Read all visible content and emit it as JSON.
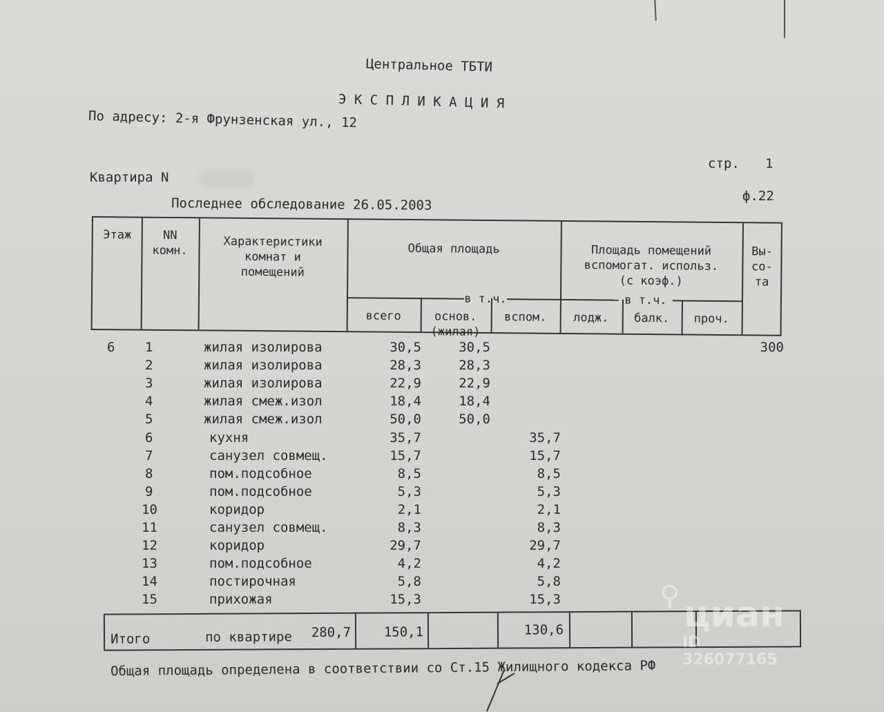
{
  "header": {
    "org": "Центральное ТБТИ",
    "title": "Э К С П Л И К А Ц И Я",
    "address": "По адресу: 2-я Фрунзенская ул., 12",
    "page_label": "стр.",
    "page_number": "1",
    "apartment_label": "Квартира N",
    "last_survey": "Последнее обследование 26.05.2003",
    "form": "ф.22"
  },
  "table_header": {
    "floor": "Этаж",
    "room_no": [
      "NN",
      "комн."
    ],
    "characteristics": [
      "Характеристики",
      "комнат и",
      "помещений"
    ],
    "total_area": "Общая площадь",
    "incl": "в т.ч.",
    "total": "всего",
    "main": [
      "основ.",
      "(жилая)"
    ],
    "aux": "вспом.",
    "aux_area": [
      "Площадь помещений",
      "вспомогат. использ.",
      "(с коэф.)"
    ],
    "incl2": "в т.ч.",
    "loggia": "лодж.",
    "balcony": "балк.",
    "other": "проч.",
    "height": [
      "Вы-",
      "со-",
      "та"
    ]
  },
  "rows": [
    {
      "floor": "6",
      "no": "1",
      "name": "жилая изолирова",
      "total": "30,5",
      "main": "30,5",
      "aux": "",
      "height": "300"
    },
    {
      "floor": "",
      "no": "2",
      "name": "жилая изолирова",
      "total": "28,3",
      "main": "28,3",
      "aux": "",
      "height": ""
    },
    {
      "floor": "",
      "no": "3",
      "name": "жилая изолирова",
      "total": "22,9",
      "main": "22,9",
      "aux": "",
      "height": ""
    },
    {
      "floor": "",
      "no": "4",
      "name": "жилая смеж.изол",
      "total": "18,4",
      "main": "18,4",
      "aux": "",
      "height": ""
    },
    {
      "floor": "",
      "no": "5",
      "name": "жилая смеж.изол",
      "total": "50,0",
      "main": "50,0",
      "aux": "",
      "height": ""
    },
    {
      "floor": "",
      "no": "6",
      "name": "кухня",
      "total": "35,7",
      "main": "",
      "aux": "35,7",
      "height": ""
    },
    {
      "floor": "",
      "no": "7",
      "name": "санузел совмещ.",
      "total": "15,7",
      "main": "",
      "aux": "15,7",
      "height": ""
    },
    {
      "floor": "",
      "no": "8",
      "name": "пом.подсобное",
      "total": "8,5",
      "main": "",
      "aux": "8,5",
      "height": ""
    },
    {
      "floor": "",
      "no": "9",
      "name": "пом.подсобное",
      "total": "5,3",
      "main": "",
      "aux": "5,3",
      "height": ""
    },
    {
      "floor": "",
      "no": "10",
      "name": "коридор",
      "total": "2,1",
      "main": "",
      "aux": "2,1",
      "height": ""
    },
    {
      "floor": "",
      "no": "11",
      "name": "санузел совмещ.",
      "total": "8,3",
      "main": "",
      "aux": "8,3",
      "height": ""
    },
    {
      "floor": "",
      "no": "12",
      "name": "коридор",
      "total": "29,7",
      "main": "",
      "aux": "29,7",
      "height": ""
    },
    {
      "floor": "",
      "no": "13",
      "name": "пом.подсобное",
      "total": "4,2",
      "main": "",
      "aux": "4,2",
      "height": ""
    },
    {
      "floor": "",
      "no": "14",
      "name": "постирочная",
      "total": "5,8",
      "main": "",
      "aux": "5,8",
      "height": ""
    },
    {
      "floor": "",
      "no": "15",
      "name": "прихожая",
      "total": "15,3",
      "main": "",
      "aux": "15,3",
      "height": ""
    }
  ],
  "totals": {
    "label": "Итого",
    "scope": "по квартире",
    "total": "280,7",
    "main": "150,1",
    "aux": "130,6"
  },
  "footer": "Общая площадь определена в соответствии со Ст.15 Жилищного кодекса РФ",
  "watermark": {
    "brand": "циан",
    "id": "ID 326077165"
  }
}
